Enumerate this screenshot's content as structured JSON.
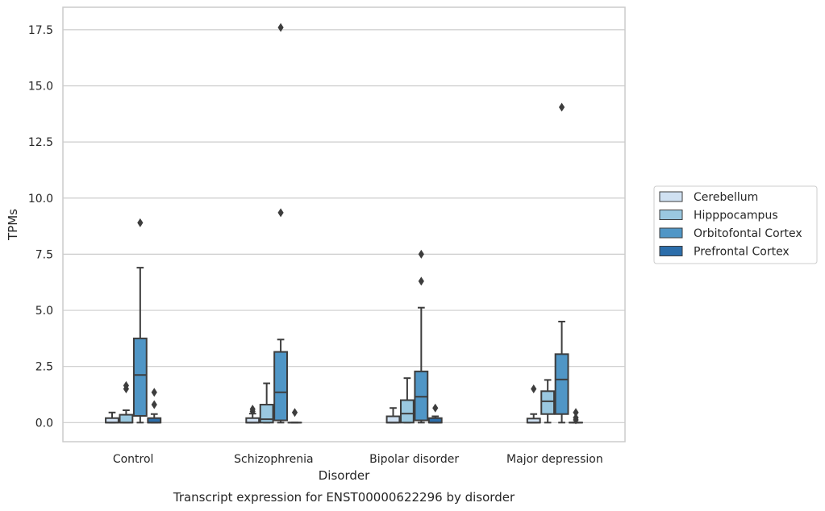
{
  "chart_data": {
    "type": "box",
    "caption": "Transcript expression for ENST00000622296 by disorder",
    "xlabel": "Disorder",
    "ylabel": "TPMs",
    "ylim": [
      -0.85,
      18.5
    ],
    "yticks": [
      0.0,
      2.5,
      5.0,
      7.5,
      10.0,
      12.5,
      15.0,
      17.5
    ],
    "ytick_labels": [
      "0.0",
      "2.5",
      "5.0",
      "7.5",
      "10.0",
      "12.5",
      "15.0",
      "17.5"
    ],
    "grid": "horizontal",
    "legend_position": "right",
    "categories": [
      "Control",
      "Schizophrenia",
      "Bipolar disorder",
      "Major depression"
    ],
    "series": [
      {
        "name": "Cerebellum",
        "color": "#d0e1f2",
        "boxes": [
          {
            "q1": 0.0,
            "median": 0.0,
            "q3": 0.2,
            "whisker_low": 0.0,
            "whisker_high": 0.45,
            "outliers": []
          },
          {
            "q1": 0.0,
            "median": 0.0,
            "q3": 0.2,
            "whisker_low": 0.0,
            "whisker_high": 0.4,
            "outliers": [
              0.5,
              0.6
            ]
          },
          {
            "q1": 0.0,
            "median": 0.0,
            "q3": 0.28,
            "whisker_low": 0.0,
            "whisker_high": 0.65,
            "outliers": []
          },
          {
            "q1": 0.0,
            "median": 0.0,
            "q3": 0.18,
            "whisker_low": 0.0,
            "whisker_high": 0.38,
            "outliers": [
              1.5
            ]
          }
        ]
      },
      {
        "name": "Hipppocampus",
        "color": "#9ac8e0",
        "boxes": [
          {
            "q1": 0.0,
            "median": 0.0,
            "q3": 0.35,
            "whisker_low": 0.0,
            "whisker_high": 0.55,
            "outliers": [
              1.5,
              1.65
            ]
          },
          {
            "q1": 0.0,
            "median": 0.15,
            "q3": 0.8,
            "whisker_low": 0.0,
            "whisker_high": 1.75,
            "outliers": []
          },
          {
            "q1": 0.0,
            "median": 0.4,
            "q3": 1.0,
            "whisker_low": 0.0,
            "whisker_high": 1.98,
            "outliers": []
          },
          {
            "q1": 0.38,
            "median": 0.95,
            "q3": 1.4,
            "whisker_low": 0.0,
            "whisker_high": 1.9,
            "outliers": []
          }
        ]
      },
      {
        "name": "Orbitofontal Cortex",
        "color": "#5096c6",
        "boxes": [
          {
            "q1": 0.3,
            "median": 2.12,
            "q3": 3.75,
            "whisker_low": 0.0,
            "whisker_high": 6.9,
            "outliers": [
              8.9
            ]
          },
          {
            "q1": 0.1,
            "median": 1.35,
            "q3": 3.15,
            "whisker_low": 0.0,
            "whisker_high": 3.7,
            "outliers": [
              9.35,
              17.6
            ]
          },
          {
            "q1": 0.1,
            "median": 1.15,
            "q3": 2.28,
            "whisker_low": 0.0,
            "whisker_high": 5.12,
            "outliers": [
              6.3,
              7.5
            ]
          },
          {
            "q1": 0.38,
            "median": 1.92,
            "q3": 3.05,
            "whisker_low": 0.0,
            "whisker_high": 4.5,
            "outliers": [
              14.05
            ]
          }
        ]
      },
      {
        "name": "Prefrontal Cortex",
        "color": "#2c6eab",
        "boxes": [
          {
            "q1": 0.0,
            "median": 0.0,
            "q3": 0.2,
            "whisker_low": 0.0,
            "whisker_high": 0.38,
            "outliers": [
              0.8,
              1.35
            ]
          },
          {
            "q1": 0.0,
            "median": 0.0,
            "q3": 0.0,
            "whisker_low": 0.0,
            "whisker_high": 0.0,
            "outliers": [
              0.45
            ]
          },
          {
            "q1": 0.0,
            "median": 0.0,
            "q3": 0.2,
            "whisker_low": 0.0,
            "whisker_high": 0.28,
            "outliers": [
              0.65
            ]
          },
          {
            "q1": 0.0,
            "median": 0.0,
            "q3": 0.0,
            "whisker_low": 0.0,
            "whisker_high": 0.0,
            "outliers": [
              0.12,
              0.22,
              0.45
            ]
          }
        ]
      }
    ]
  }
}
